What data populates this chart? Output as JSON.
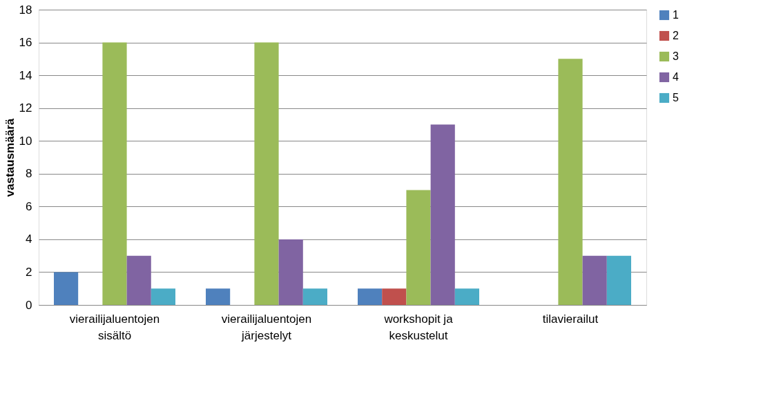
{
  "chart_data": {
    "type": "bar",
    "ylabel": "vastausmäärä",
    "categories": [
      "vierailijaluentojen\nsisältö",
      "vierailijaluentojen\njärjestelyt",
      "workshopit ja\nkeskustelut",
      "tilavierailut"
    ],
    "series": [
      {
        "name": "1",
        "color": "#4f81bd",
        "values": [
          2,
          1,
          1,
          0
        ]
      },
      {
        "name": "2",
        "color": "#c0504d",
        "values": [
          0,
          0,
          1,
          0
        ]
      },
      {
        "name": "3",
        "color": "#9bbb59",
        "values": [
          16,
          16,
          7,
          15
        ]
      },
      {
        "name": "4",
        "color": "#8064a2",
        "values": [
          3,
          4,
          11,
          3
        ]
      },
      {
        "name": "5",
        "color": "#4bacc6",
        "values": [
          1,
          1,
          1,
          3
        ]
      }
    ],
    "ylim": [
      0,
      18
    ],
    "yticks": [
      0,
      2,
      4,
      6,
      8,
      10,
      12,
      14,
      16,
      18
    ],
    "grid": "y",
    "legend": "right"
  }
}
